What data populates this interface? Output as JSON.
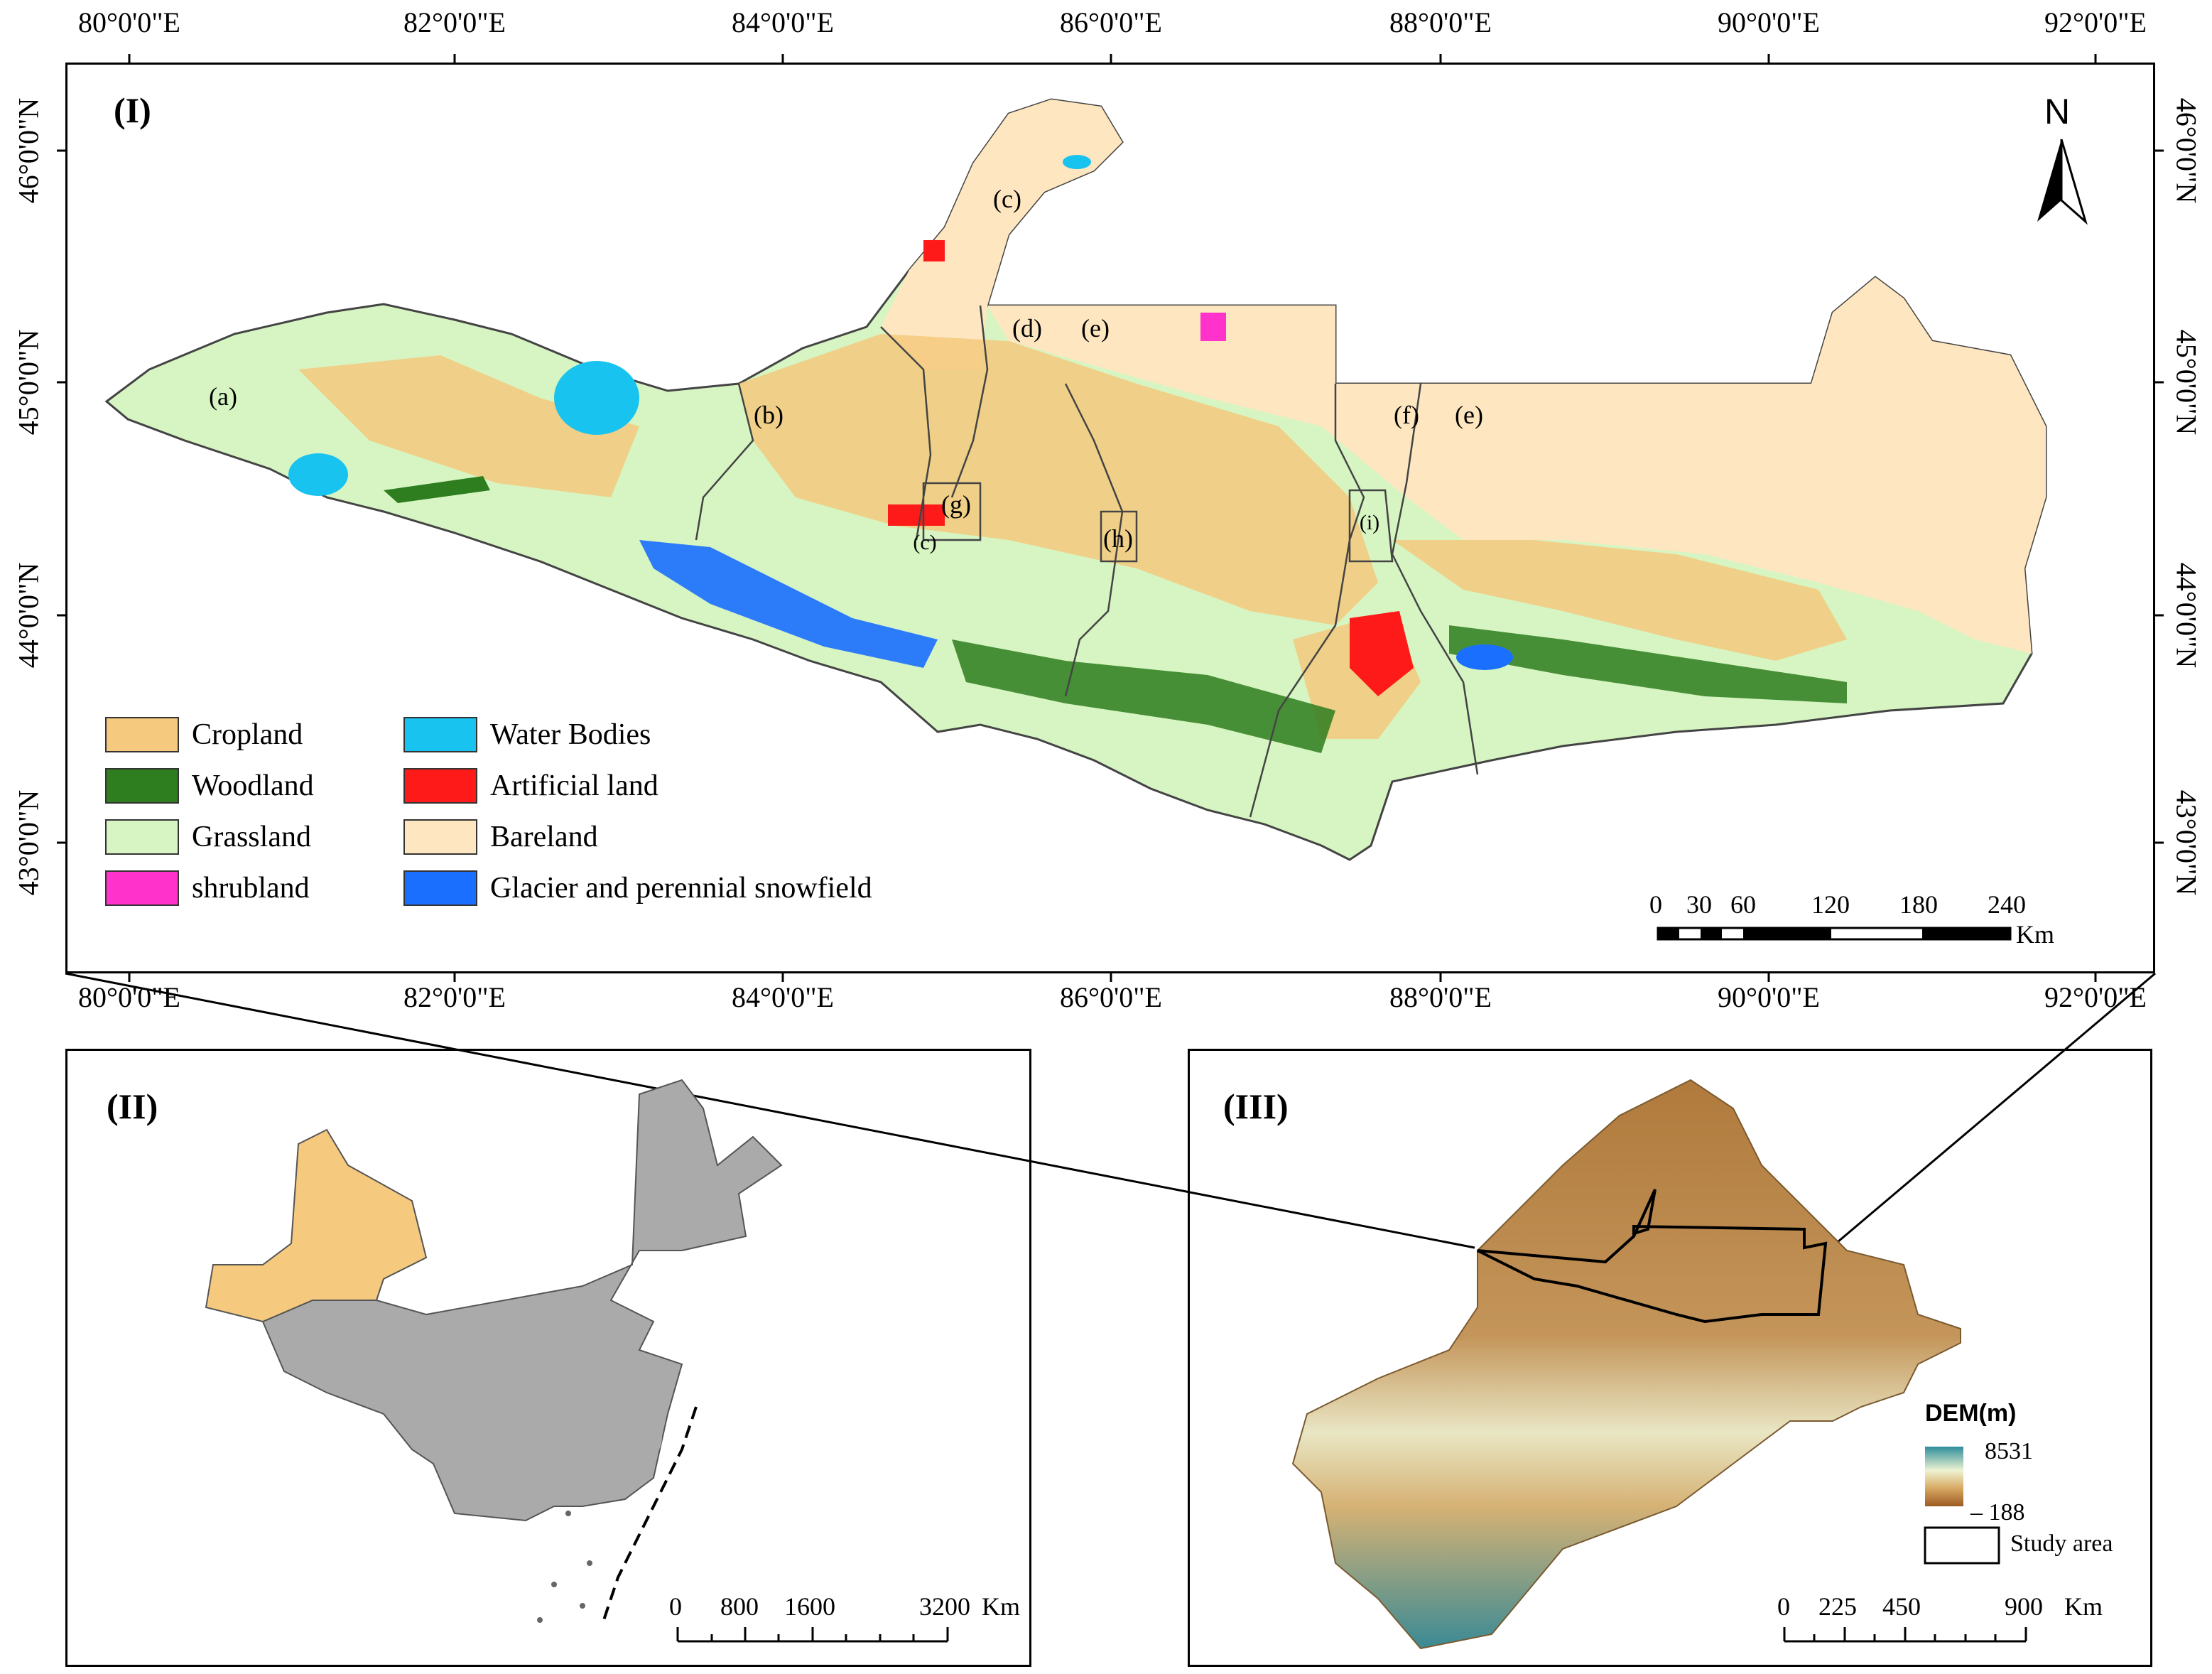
{
  "panels": {
    "p1": {
      "label": "(I)"
    },
    "p2": {
      "label": "(II)"
    },
    "p3": {
      "label": "(III)"
    }
  },
  "axes": {
    "lon_top": [
      "80°0'0\"E",
      "82°0'0\"E",
      "84°0'0\"E",
      "86°0'0\"E",
      "88°0'0\"E",
      "90°0'0\"E",
      "92°0'0\"E"
    ],
    "lon_bottom": [
      "80°0'0\"E",
      "82°0'0\"E",
      "84°0'0\"E",
      "86°0'0\"E",
      "88°0'0\"E",
      "90°0'0\"E",
      "92°0'0\"E"
    ],
    "lat_left": [
      "46°0'0\"N",
      "45°0'0\"N",
      "44°0'0\"N",
      "43°0'0\"N"
    ],
    "lat_right": [
      "46°0'0\"N",
      "45°0'0\"N",
      "44°0'0\"N",
      "43°0'0\"N"
    ]
  },
  "regions": [
    "(a)",
    "(b)",
    "(c)",
    "(d)",
    "(e)",
    "(e)",
    "(f)",
    "(g)",
    "(c)",
    "(h)",
    "(i)"
  ],
  "north": {
    "label": "N",
    "icon": "north-arrow-icon"
  },
  "legend": [
    {
      "label": "Cropland",
      "color": "#f5c97e"
    },
    {
      "label": "Woodland",
      "color": "#2e7d1f"
    },
    {
      "label": "Grassland",
      "color": "#d6f5c2"
    },
    {
      "label": "shrubland",
      "color": "#ff33cc"
    },
    {
      "label": "Water Bodies",
      "color": "#19c3ef"
    },
    {
      "label": "Artificial land",
      "color": "#ff1a1a"
    },
    {
      "label": "Bareland",
      "color": "#fde6c0"
    },
    {
      "label": "Glacier and perennial snowfield",
      "color": "#1a6fff"
    }
  ],
  "scale1": {
    "ticks": [
      "0",
      "30",
      "60",
      "120",
      "180",
      "240"
    ],
    "unit": "Km"
  },
  "scale2": {
    "ticks": [
      "0",
      "800",
      "1600",
      "3200"
    ],
    "unit": "Km"
  },
  "scale3": {
    "ticks": [
      "0",
      "225",
      "450",
      "900"
    ],
    "unit": "Km"
  },
  "dem": {
    "title": "DEM(m)",
    "max": "8531",
    "min": "– 188",
    "study": "Study area"
  }
}
